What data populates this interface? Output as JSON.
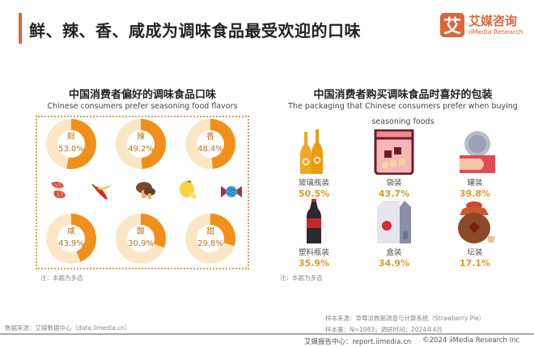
{
  "header": {
    "title": "鲜、辣、香、咸成为调味食品最受欢迎的口味",
    "accent_color": "#d9673a",
    "logo": {
      "mark": "艾",
      "cn": "艾媒咨询",
      "en": "iiMedia Research"
    }
  },
  "left": {
    "title": "中国消费者偏好的调味食品口味",
    "subtitle": "Chinese consumers prefer seasoning food flavors",
    "note": "注：本题为多选",
    "icons": [
      "shrimp-icon",
      "chili-icon",
      "mushroom-icon",
      "lemon-icon",
      "candy-icon"
    ]
  },
  "right": {
    "title": "中国消费者购买调味食品时喜好的包装",
    "subtitle_line1": "The packaging that Chinese consumers prefer when buying",
    "subtitle_line2": "seasoning foods",
    "note": "注：本题为多选"
  },
  "footer": {
    "source_left": "数据来源：艾媒数据中心（data.iimedia.cn）",
    "sample_source": "样本来源：草莓派数据调查与计算系统（Strawberry Pie）",
    "sample_size": "样本量：N=1983；调研时间：2024年4月",
    "report_site": "艾媒报告中心：report.iimedia.cn",
    "copyright": "©2024  iiMedia Research Inc"
  },
  "chart_data": [
    {
      "type": "pie",
      "subtype": "donut",
      "title": "中国消费者偏好的调味食品口味",
      "subtitle": "Chinese consumers prefer seasoning food flavors",
      "categories": [
        "鲜",
        "辣",
        "香",
        "咸",
        "酸",
        "甜"
      ],
      "values": [
        53.0,
        49.2,
        48.4,
        43.9,
        30.9,
        29.8
      ],
      "labels": [
        "53.0%",
        "49.2%",
        "48.4%",
        "43.9%",
        "30.9%",
        "29.8%"
      ],
      "unit": "%",
      "colors": {
        "filled": "#f0901a",
        "track": "#fbe6c6",
        "label": "#b8731f"
      },
      "note": "注：本题为多选"
    },
    {
      "type": "table",
      "title": "中国消费者购买调味食品时喜好的包装",
      "subtitle": "The packaging that Chinese consumers prefer when buying seasoning foods",
      "categories": [
        "玻璃瓶装",
        "袋装",
        "罐装",
        "塑料瓶装",
        "盒装",
        "坛装"
      ],
      "values": [
        50.5,
        43.7,
        39.8,
        35.9,
        34.9,
        17.1
      ],
      "labels": [
        "50.5%",
        "43.7%",
        "39.8%",
        "35.9%",
        "34.9%",
        "17.1%"
      ],
      "icons": [
        "glass-bottle-icon",
        "bag-icon",
        "can-icon",
        "plastic-bottle-icon",
        "carton-icon",
        "jar-icon"
      ],
      "unit": "%",
      "value_color": "#d99a2b",
      "note": "注：本题为多选"
    }
  ]
}
